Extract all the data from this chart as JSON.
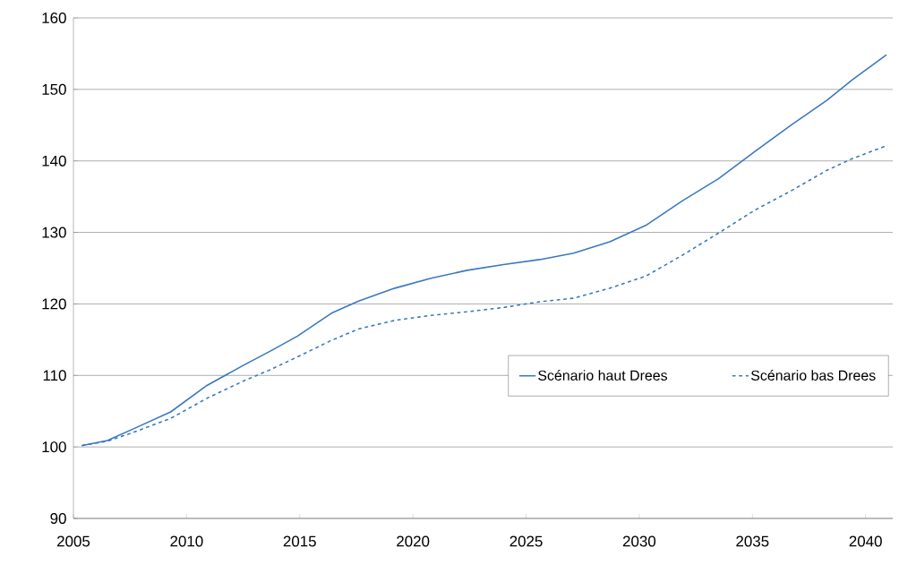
{
  "chart_data": {
    "type": "line",
    "xlim": [
      2005,
      2041.2
    ],
    "xticks": [
      2005,
      2010,
      2015,
      2020,
      2025,
      2030,
      2035,
      2040
    ],
    "ylim": [
      90,
      160
    ],
    "yticks": [
      90,
      100,
      110,
      120,
      130,
      140,
      150,
      160
    ],
    "grid": "y",
    "legend": "right",
    "series": [
      {
        "name": "Scénario haut Drees",
        "color": "#3a78c0",
        "line_style": "solid",
        "x": [
          2005.4,
          2006.5,
          2007.7,
          2009.3,
          2010.9,
          2012.5,
          2013.7,
          2014.9,
          2016.4,
          2017.6,
          2019.2,
          2020.8,
          2022.4,
          2024.0,
          2025.6,
          2027.1,
          2028.7,
          2030.3,
          2031.9,
          2033.5,
          2035.1,
          2036.7,
          2038.3,
          2039.4,
          2040.9
        ],
        "values": [
          100.2,
          100.9,
          102.6,
          104.9,
          108.6,
          111.4,
          113.4,
          115.5,
          118.7,
          120.4,
          122.2,
          123.6,
          124.7,
          125.5,
          126.2,
          127.1,
          128.7,
          131.0,
          134.4,
          137.5,
          141.3,
          145.0,
          148.5,
          151.3,
          154.8
        ]
      },
      {
        "name": "Scénario bas Drees",
        "color": "#3a78c0",
        "line_style": "dotted",
        "x": [
          2005.4,
          2006.5,
          2007.7,
          2009.3,
          2010.9,
          2012.5,
          2013.7,
          2014.9,
          2016.4,
          2017.6,
          2019.2,
          2020.8,
          2022.4,
          2024.0,
          2025.6,
          2027.1,
          2028.7,
          2030.3,
          2031.9,
          2033.5,
          2035.1,
          2036.7,
          2038.3,
          2039.4,
          2040.9
        ],
        "values": [
          100.2,
          100.8,
          102.1,
          104.0,
          106.8,
          109.2,
          110.8,
          112.6,
          114.9,
          116.5,
          117.7,
          118.4,
          118.9,
          119.5,
          120.3,
          120.8,
          122.2,
          123.9,
          126.8,
          129.9,
          133.1,
          135.8,
          138.7,
          140.3,
          142.1
        ]
      }
    ]
  }
}
